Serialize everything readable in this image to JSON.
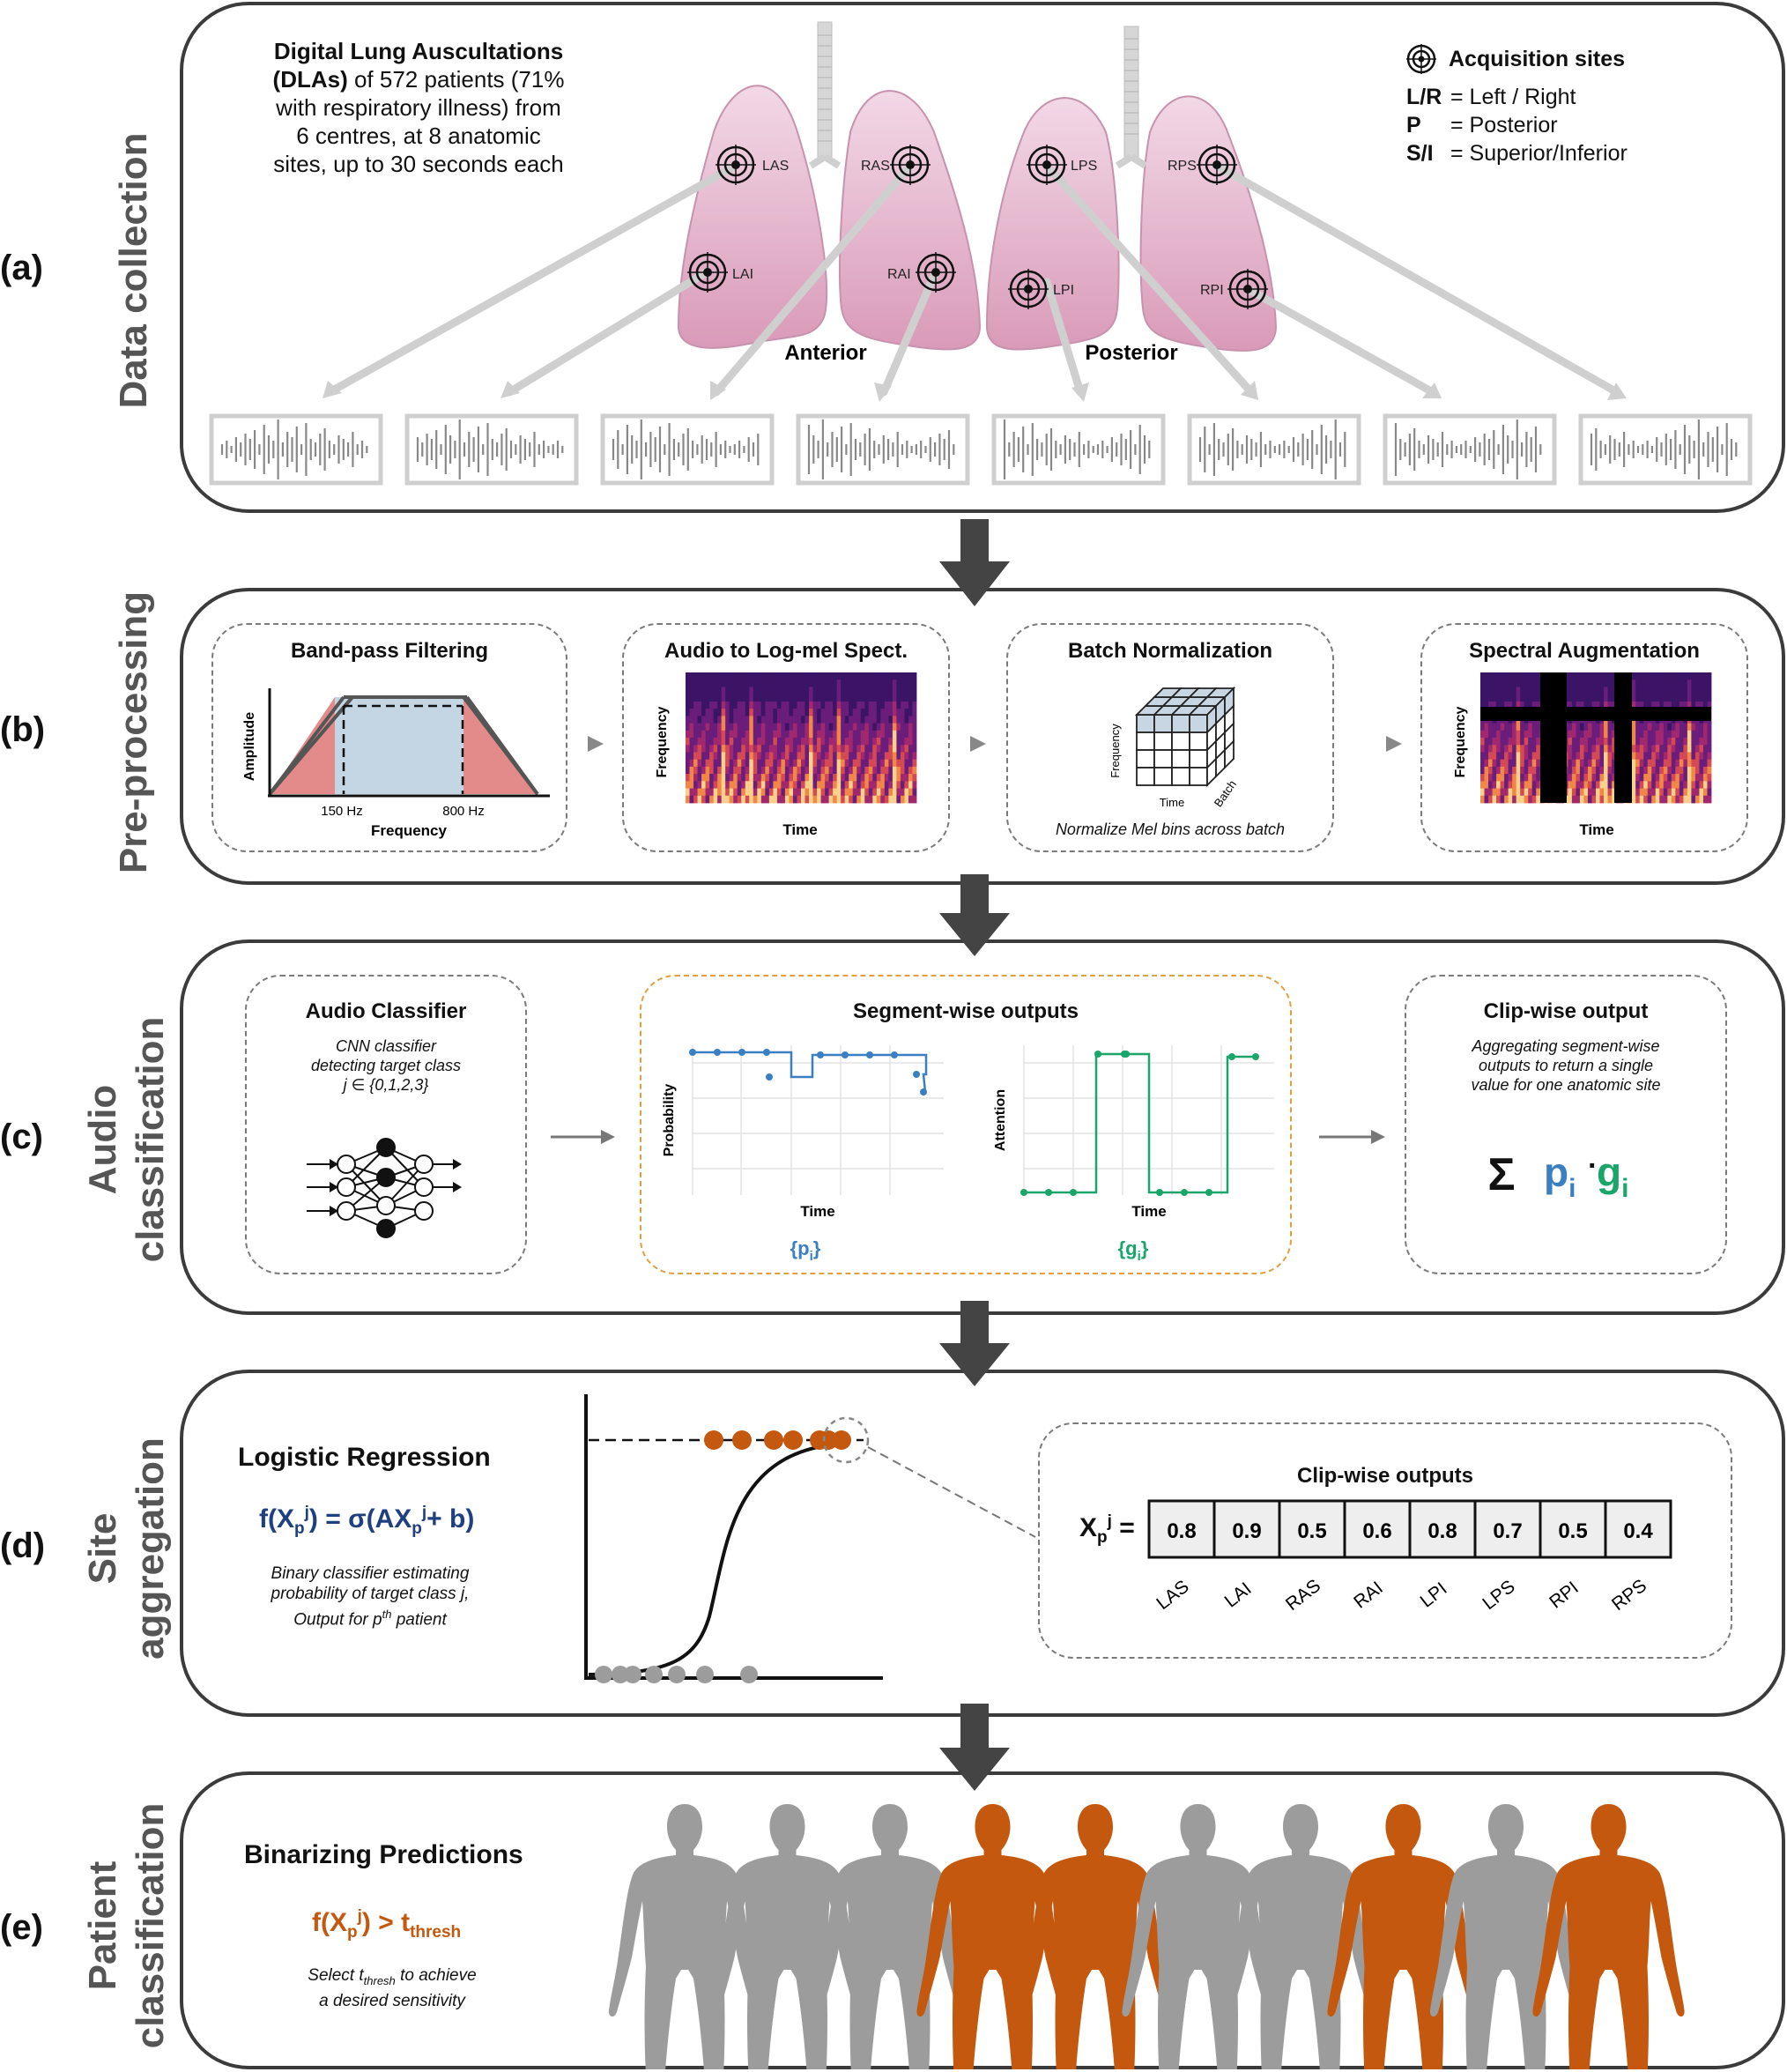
{
  "panels": {
    "a": {
      "label": "(a)",
      "title": "Data collection",
      "intro_bold": "Digital Lung Auscultations",
      "intro_bold2": "(DLAs)",
      "intro_rest1": " of 572 patients (71%",
      "intro_line3": "with respiratory illness) from",
      "intro_line4": "6 centres, at 8 anatomic",
      "intro_line5": "sites, up to 30 seconds each",
      "legend_title": "Acquisition sites",
      "legend": [
        {
          "key": "L/R",
          "val": "= Left / Right"
        },
        {
          "key": "P",
          "val": "= Posterior"
        },
        {
          "key": "S/I",
          "val": "= Superior/Inferior"
        }
      ],
      "anterior_label": "Anterior",
      "posterior_label": "Posterior",
      "sites": [
        "LAS",
        "LAI",
        "RAS",
        "RAI",
        "LPS",
        "LPI",
        "RPS",
        "RPI"
      ]
    },
    "b": {
      "label": "(b)",
      "title": "Pre-processing",
      "box1_title": "Band-pass Filtering",
      "box1_ylabel": "Amplitude",
      "box1_xlabel": "Frequency",
      "box1_low": "150 Hz",
      "box1_high": "800 Hz",
      "box2_title": "Audio to Log-mel Spect.",
      "box2_ylabel": "Frequency",
      "box2_xlabel": "Time",
      "box3_title": "Batch Normalization",
      "box3_freq": "Frequency",
      "box3_time": "Time",
      "box3_batch": "Batch",
      "box3_caption": "Normalize Mel bins across batch",
      "box4_title": "Spectral Augmentation",
      "box4_ylabel": "Frequency",
      "box4_xlabel": "Time"
    },
    "c": {
      "label": "(c)",
      "title_line1": "Audio",
      "title_line2": "classification",
      "box1_title": "Audio Classifier",
      "box1_l1": "CNN classifier",
      "box1_l2": "detecting target class",
      "box1_l3": "j ∈ {0,1,2,3}",
      "box2_title": "Segment-wise outputs",
      "prob_ylabel": "Probability",
      "att_ylabel": "Attention",
      "xlabel": "Time",
      "p_label": "{p",
      "p_sub": "i",
      "g_label": "{g",
      "g_sub": "i",
      "close": "}",
      "box3_title": "Clip-wise output",
      "box3_l1": "Aggregating segment-wise",
      "box3_l2": "outputs to return a single",
      "box3_l3": "value for one anatomic site",
      "sum_sym": "Σ",
      "p_sym": "p",
      "dot": "·",
      "g_sym": "g",
      "i_sub": "i"
    },
    "d": {
      "label": "(d)",
      "title_line1": "Site",
      "title_line2": "aggregation",
      "lr_title": "Logistic Regression",
      "f_open": "f(X",
      "f_sub": "p",
      "f_sup": "j",
      "f_mid": ") = σ(AX",
      "f_end": "+ b)",
      "desc1": "Binary classifier estimating",
      "desc2": "probability of target class j,",
      "desc3a": "Output for p",
      "desc3sup": "th",
      "desc3b": " patient",
      "clip_title": "Clip-wise outputs",
      "x_label": "X",
      "x_sub": "p",
      "x_sup": "j",
      "x_eq": " =",
      "values": [
        "0.8",
        "0.9",
        "0.5",
        "0.6",
        "0.8",
        "0.7",
        "0.5",
        "0.4"
      ],
      "sites": [
        "LAS",
        "LAI",
        "RAS",
        "RAI",
        "LPI",
        "LPS",
        "RPI",
        "RPS"
      ]
    },
    "e": {
      "label": "(e)",
      "title_line1": "Patient",
      "title_line2": "classification",
      "bin_title": "Binarizing Predictions",
      "f_open": "f(X",
      "f_sub": "p",
      "f_sup": "j",
      "f_mid": ") > t",
      "f_thresh": "thresh",
      "sel1a": "Select t",
      "sel1sub": "thresh",
      "sel1b": " to achieve",
      "sel2": "a desired sensitivity",
      "patients": [
        "negative",
        "negative",
        "negative",
        "positive",
        "positive",
        "negative",
        "negative",
        "positive",
        "negative",
        "positive"
      ]
    }
  },
  "colors": {
    "orange": "#c4580e",
    "blue": "#3a7fc1",
    "green": "#1aa56a",
    "navy": "#1e3f80",
    "gray": "#9c9c9c"
  }
}
